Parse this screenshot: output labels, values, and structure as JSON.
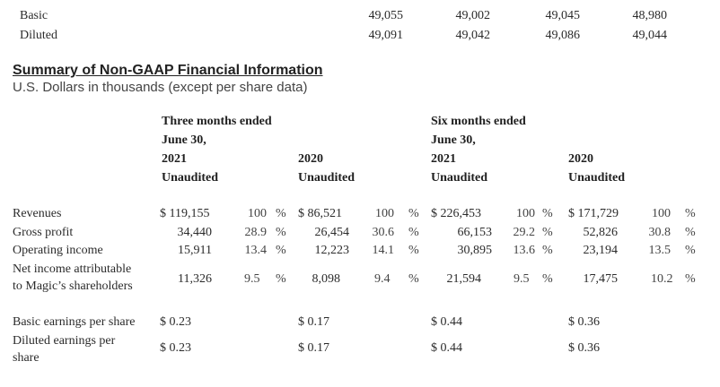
{
  "shares": {
    "basic": {
      "label": "Basic",
      "values": [
        "49,055",
        "49,002",
        "49,045",
        "48,980"
      ]
    },
    "diluted": {
      "label": "Diluted",
      "values": [
        "49,091",
        "49,042",
        "49,086",
        "49,044"
      ]
    }
  },
  "summary": {
    "title": "Summary of Non-GAAP Financial Information",
    "subtitle": "U.S. Dollars in thousands (except per share data)"
  },
  "headers": {
    "three_months": "Three months ended",
    "six_months": "Six months ended",
    "june30": "June 30,",
    "y2021": "2021",
    "y2020": "2020",
    "unaudited": "Unaudited"
  },
  "rows": [
    {
      "label": "Revenues",
      "c1": "$ 119,155",
      "p1": "100",
      "s1": "%",
      "c2": "$ 86,521",
      "p2": "100",
      "s2": "%",
      "c3": "$ 226,453",
      "p3": "100",
      "s3": "%",
      "c4": "$ 171,729",
      "p4": "100",
      "s4": "%"
    },
    {
      "label": "Gross profit",
      "c1": "34,440",
      "p1": "28.9",
      "s1": "%",
      "c2": "26,454",
      "p2": "30.6",
      "s2": "%",
      "c3": "66,153",
      "p3": "29.2",
      "s3": "%",
      "c4": "52,826",
      "p4": "30.8",
      "s4": "%"
    },
    {
      "label": "Operating income",
      "c1": "15,911",
      "p1": "13.4",
      "s1": "%",
      "c2": "12,223",
      "p2": "14.1",
      "s2": "%",
      "c3": "30,895",
      "p3": "13.6",
      "s3": "%",
      "c4": "23,194",
      "p4": "13.5",
      "s4": "%"
    },
    {
      "label_line1": "Net income attributable",
      "label_line2": "to Magic’s shareholders",
      "c1": "11,326",
      "p1": "9.5",
      "s1": "%",
      "c2": "8,098",
      "p2": "9.4",
      "s2": "%",
      "c3": "21,594",
      "p3": "9.5",
      "s3": "%",
      "c4": "17,475",
      "p4": "10.2",
      "s4": "%"
    }
  ],
  "eps": {
    "basic_label": "Basic earnings per share",
    "basic": [
      "$ 0.23",
      "$ 0.17",
      "$ 0.44",
      "$ 0.36"
    ],
    "diluted_label_line1": "Diluted earnings per",
    "diluted_label_line2": "share",
    "diluted": [
      "$ 0.23",
      "$ 0.17",
      "$ 0.44",
      "$ 0.36"
    ]
  }
}
